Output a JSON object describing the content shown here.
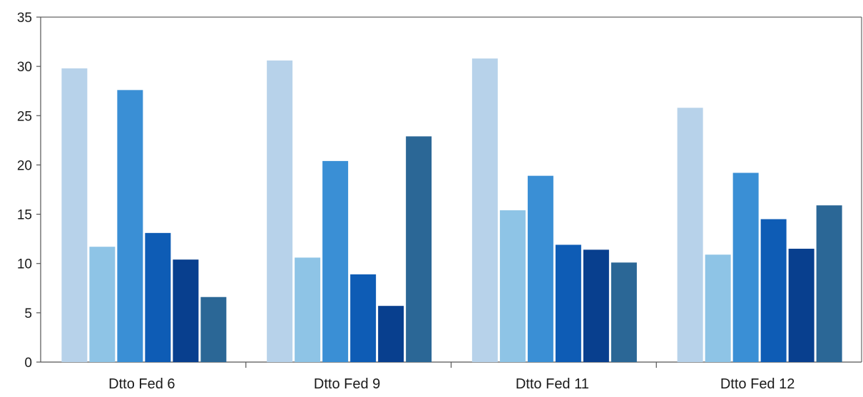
{
  "chart_data": {
    "type": "bar",
    "title": "",
    "xlabel": "",
    "ylabel": "",
    "ylim": [
      0,
      35
    ],
    "yticks": [
      0,
      5,
      10,
      15,
      20,
      25,
      30,
      35
    ],
    "grid": false,
    "legend": "none",
    "categories": [
      "Dtto Fed 6",
      "Dtto Fed 9",
      "Dtto Fed 11",
      "Dtto Fed 12"
    ],
    "series": [
      {
        "color": "#b7d2ea",
        "values": [
          29.8,
          30.6,
          30.8,
          25.8
        ]
      },
      {
        "color": "#8ec4e6",
        "values": [
          11.7,
          10.6,
          15.4,
          10.9
        ]
      },
      {
        "color": "#3a8fd5",
        "values": [
          27.6,
          20.4,
          18.9,
          19.2
        ]
      },
      {
        "color": "#0e5cb5",
        "values": [
          13.1,
          8.9,
          11.9,
          14.5
        ]
      },
      {
        "color": "#083f8e",
        "values": [
          10.4,
          5.7,
          11.4,
          11.5
        ]
      },
      {
        "color": "#2b6796",
        "values": [
          6.6,
          22.9,
          10.1,
          15.9
        ]
      }
    ]
  }
}
